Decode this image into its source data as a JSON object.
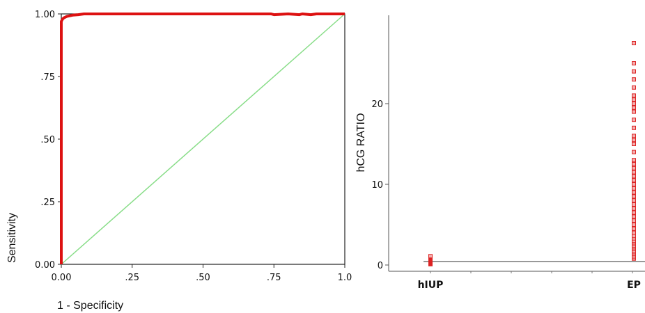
{
  "chart_data": [
    {
      "type": "line",
      "title": "",
      "xlabel": "1 - Specificity",
      "ylabel": "Sensitivity",
      "xlim": [
        0,
        1
      ],
      "ylim": [
        0,
        1
      ],
      "x_ticks": [
        "0.00",
        ".25",
        ".50",
        ".75",
        "1.0"
      ],
      "y_ticks": [
        "0.00",
        ".25",
        ".50",
        ".75",
        "1.00"
      ],
      "grid": false,
      "series": [
        {
          "color": "#dd1111",
          "x": [
            0,
            0,
            0,
            0.005,
            0.01,
            0.02,
            0.04,
            0.06,
            0.08,
            0.2,
            0.4,
            0.6,
            0.74,
            0.75,
            0.8,
            0.84,
            0.85,
            0.88,
            0.9,
            1.0
          ],
          "y": [
            0,
            0.5,
            0.97,
            0.98,
            0.985,
            0.99,
            0.995,
            0.997,
            1.0,
            1.0,
            1.0,
            1.0,
            1.0,
            0.997,
            1.0,
            0.997,
            1.0,
            0.997,
            1.0,
            1.0
          ]
        },
        {
          "color": "#88dd88",
          "x": [
            0,
            1
          ],
          "y": [
            0,
            1
          ]
        }
      ]
    },
    {
      "type": "scatter",
      "title": "",
      "xlabel": "",
      "ylabel": "hCG RATIO",
      "categories": [
        "hIUP",
        "EP"
      ],
      "ylim": [
        0,
        29
      ],
      "y_ticks": [
        0,
        10,
        20
      ],
      "grid": false,
      "marker_color": "#dd2222",
      "series": [
        {
          "category": "hIUP",
          "values": [
            0.1,
            0.15,
            0.2,
            0.25,
            0.3,
            0.35,
            0.4,
            0.45,
            0.5,
            0.55,
            0.6,
            0.65,
            0.7,
            0.75,
            0.8,
            0.85,
            0.9,
            0.95,
            1.0,
            1.05,
            1.1
          ]
        },
        {
          "category": "EP",
          "values": [
            0.8,
            1.0,
            1.2,
            1.4,
            1.6,
            1.8,
            2.0,
            2.2,
            2.4,
            2.6,
            2.8,
            3.0,
            3.3,
            3.6,
            4.0,
            4.5,
            5.0,
            5.5,
            6.0,
            6.5,
            7.0,
            7.5,
            8.0,
            8.5,
            9.0,
            9.5,
            10.0,
            10.5,
            11.0,
            11.5,
            12.0,
            12.5,
            13.0,
            14.0,
            15.0,
            15.5,
            16.0,
            17.0,
            18.0,
            19.0,
            19.5,
            20.0,
            20.5,
            21.0,
            22.0,
            23.0,
            24.0,
            25.0,
            27.5
          ]
        }
      ]
    }
  ]
}
